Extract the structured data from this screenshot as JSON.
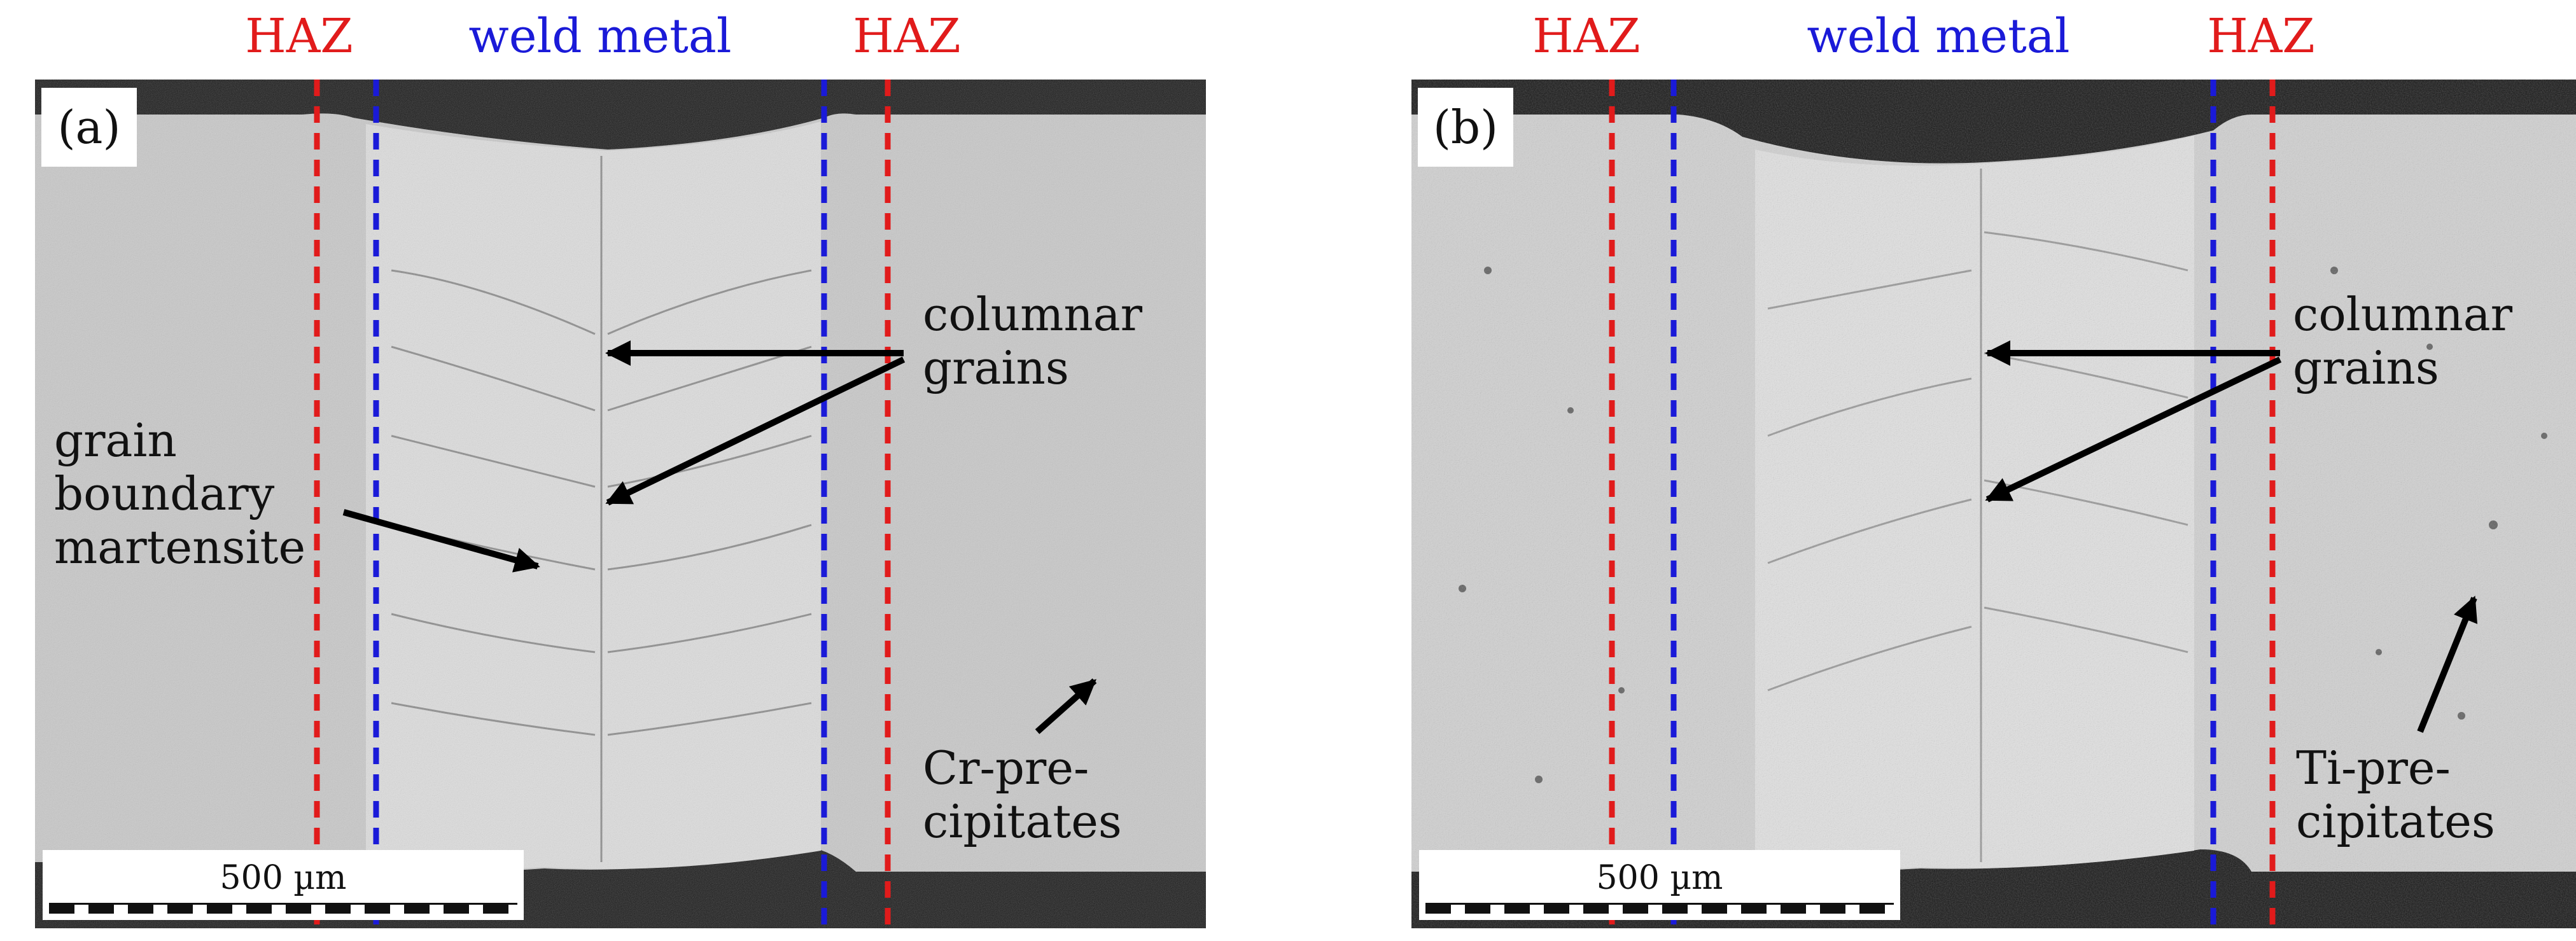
{
  "figure": {
    "panels": [
      {
        "letter": "(a)",
        "zones": {
          "left": "HAZ",
          "center": "weld metal",
          "right": "HAZ"
        },
        "annotations": {
          "columnar": "columnar\ngrains",
          "martensite": "grain\nboundary\nmartensite",
          "precipitates": "Cr-pre-\ncipitates"
        },
        "scale_bar": "500 µm"
      },
      {
        "letter": "(b)",
        "zones": {
          "left": "HAZ",
          "center": "weld metal",
          "right": "HAZ"
        },
        "annotations": {
          "columnar": "columnar\ngrains",
          "precipitates": "Ti-pre-\ncipitates"
        },
        "scale_bar": "500 µm"
      }
    ],
    "colors": {
      "haz": "#e11b1b",
      "weld": "#1a1ad8",
      "arrow": "#000000"
    }
  }
}
